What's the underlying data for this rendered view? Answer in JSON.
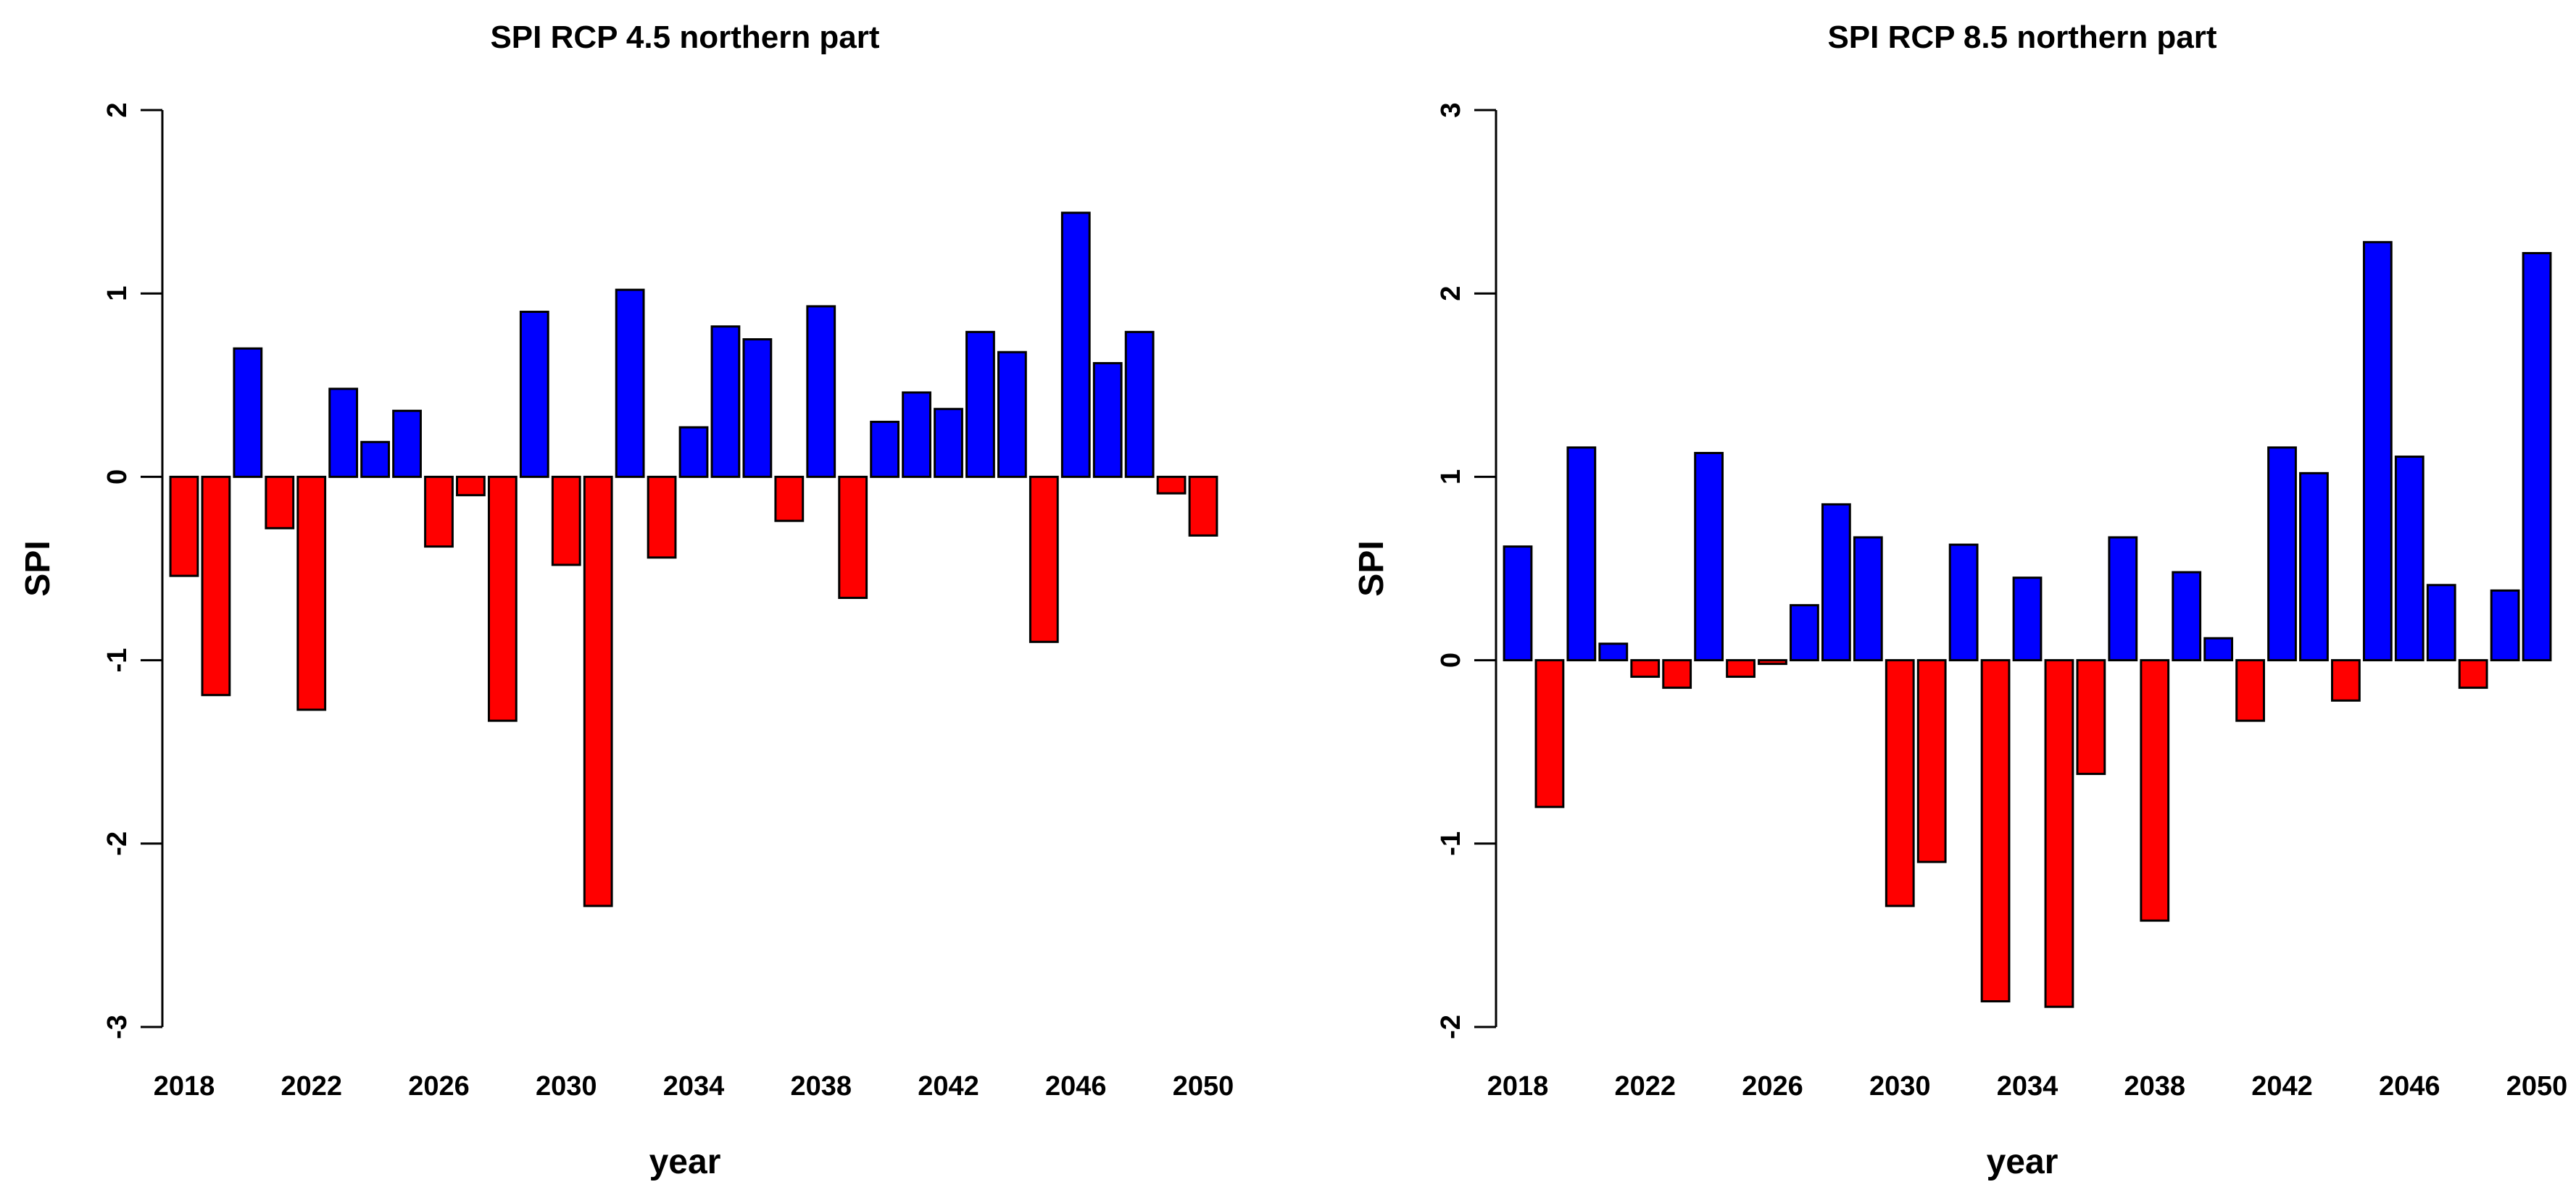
{
  "colors": {
    "positive": "#0000ff",
    "negative": "#ff0000",
    "outline": "#000000",
    "axis": "#000000"
  },
  "chart_data": [
    {
      "type": "bar",
      "title": "SPI RCP 4.5 northern part",
      "xlabel": "year",
      "ylabel": "SPI",
      "ylim": [
        -3,
        2
      ],
      "yticks": [
        -3,
        -2,
        -1,
        0,
        1,
        2
      ],
      "ytick_labels": [
        "-3",
        "-2",
        "-1",
        "0",
        "1",
        "2"
      ],
      "xtick_labels": [
        "2018",
        "2022",
        "2026",
        "2030",
        "2034",
        "2038",
        "2042",
        "2046",
        "2050"
      ],
      "x": [
        2018,
        2019,
        2020,
        2021,
        2022,
        2023,
        2024,
        2025,
        2026,
        2027,
        2028,
        2029,
        2030,
        2031,
        2032,
        2033,
        2034,
        2035,
        2036,
        2037,
        2038,
        2039,
        2040,
        2041,
        2042,
        2043,
        2044,
        2045,
        2046,
        2047,
        2048,
        2049,
        2050
      ],
      "values": [
        -0.54,
        -1.19,
        0.7,
        -0.28,
        -1.27,
        0.48,
        0.19,
        0.36,
        -0.38,
        -0.1,
        -1.33,
        0.9,
        -0.48,
        -2.34,
        1.02,
        -0.44,
        0.27,
        0.82,
        0.75,
        -0.24,
        0.93,
        -0.66,
        0.3,
        0.46,
        0.37,
        0.79,
        0.68,
        -0.9,
        1.44,
        0.62,
        0.79,
        -0.09,
        -0.32
      ]
    },
    {
      "type": "bar",
      "title": "SPI RCP 8.5 northern part",
      "xlabel": "year",
      "ylabel": "SPI",
      "ylim": [
        -2,
        3
      ],
      "yticks": [
        -2,
        -1,
        0,
        1,
        2,
        3
      ],
      "ytick_labels": [
        "-2",
        "-1",
        "0",
        "1",
        "2",
        "3"
      ],
      "xtick_labels": [
        "2018",
        "2022",
        "2026",
        "2030",
        "2034",
        "2038",
        "2042",
        "2046",
        "2050"
      ],
      "x": [
        2018,
        2019,
        2020,
        2021,
        2022,
        2023,
        2024,
        2025,
        2026,
        2027,
        2028,
        2029,
        2030,
        2031,
        2032,
        2033,
        2034,
        2035,
        2036,
        2037,
        2038,
        2039,
        2040,
        2041,
        2042,
        2043,
        2044,
        2045,
        2046,
        2047,
        2048,
        2049,
        2050
      ],
      "values": [
        0.62,
        -0.8,
        1.16,
        0.09,
        -0.09,
        -0.15,
        1.13,
        -0.09,
        -0.02,
        0.3,
        0.85,
        0.67,
        -1.34,
        -1.1,
        0.63,
        -1.86,
        0.45,
        -1.89,
        -0.62,
        0.67,
        -1.42,
        0.48,
        0.12,
        -0.33,
        1.16,
        1.02,
        -0.22,
        2.28,
        1.11,
        0.41,
        -0.15,
        0.38,
        2.22
      ]
    }
  ]
}
